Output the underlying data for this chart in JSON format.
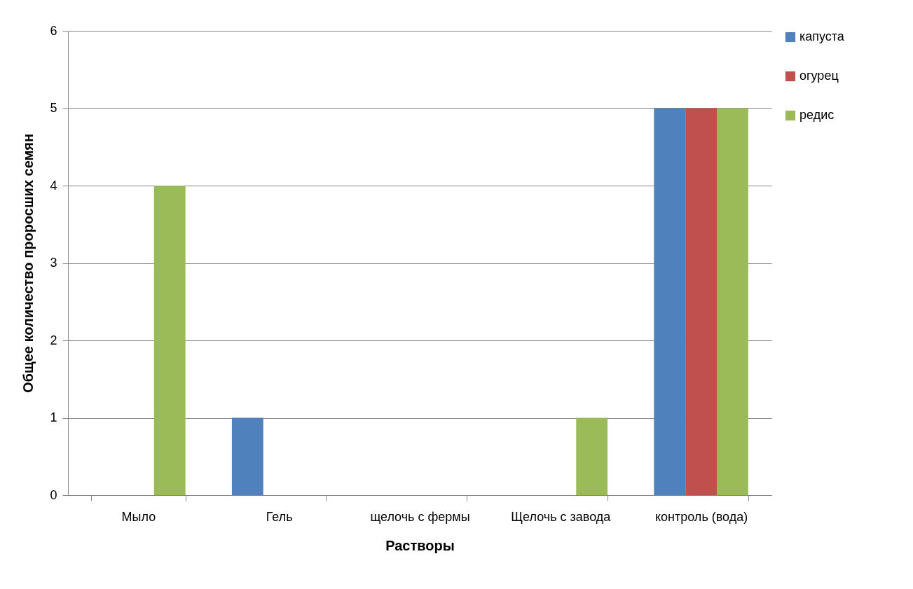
{
  "chart_data": {
    "type": "bar",
    "xlabel": "Растворы",
    "ylabel": "Общее количество проросших семян",
    "categories": [
      "Мыло",
      "Гель",
      "щелочь с фермы",
      "Щелочь с завода",
      "контроль (вода)"
    ],
    "series": [
      {
        "name": "капуста",
        "color": "#4f81bd",
        "values": [
          0,
          1,
          0,
          0,
          5
        ]
      },
      {
        "name": "огурец",
        "color": "#c0504d",
        "values": [
          0,
          0,
          0,
          0,
          5
        ]
      },
      {
        "name": "редис",
        "color": "#9bbb59",
        "values": [
          4,
          0,
          0,
          1,
          5
        ]
      }
    ],
    "ylim": [
      0,
      6
    ],
    "yticks": [
      0,
      1,
      2,
      3,
      4,
      5,
      6
    ],
    "grid": "y",
    "legend": "right"
  }
}
